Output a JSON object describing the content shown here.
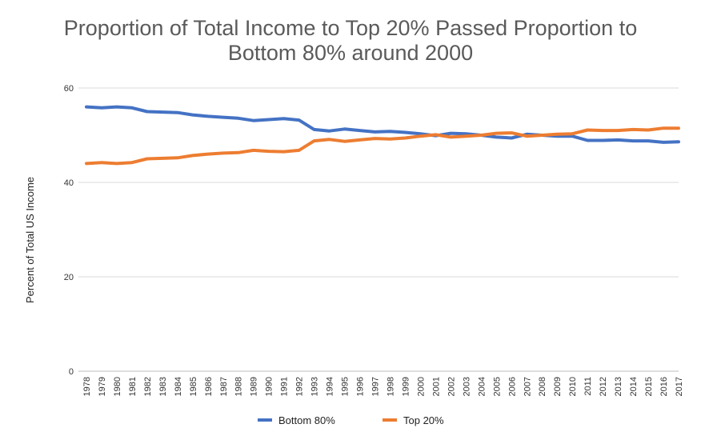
{
  "chart_data": {
    "type": "line",
    "title_lines": [
      "Proportion of Total Income to Top 20% Passed Proportion to",
      "Bottom 80% around 2000"
    ],
    "ylabel": "Percent of Total US Income",
    "xlabel": "",
    "ylim": [
      0,
      60
    ],
    "yticks": [
      0,
      20,
      40,
      60
    ],
    "grid": true,
    "legend_position": "bottom",
    "x": [
      "1978",
      "1979",
      "1980",
      "1981",
      "1982",
      "1983",
      "1984",
      "1985",
      "1986",
      "1987",
      "1988",
      "1989",
      "1990",
      "1991",
      "1992",
      "1993",
      "1994",
      "1995",
      "1996",
      "1997",
      "1998",
      "1999",
      "2000",
      "2001",
      "2002",
      "2003",
      "2004",
      "2005",
      "2006",
      "2007",
      "2008",
      "2009",
      "2010",
      "2011",
      "2012",
      "2013",
      "2014",
      "2015",
      "2016",
      "2017"
    ],
    "series": [
      {
        "name": "Bottom 80%",
        "color": "#4472C4",
        "values": [
          56.0,
          55.8,
          56.0,
          55.8,
          55.0,
          54.9,
          54.8,
          54.3,
          54.0,
          53.8,
          53.6,
          53.1,
          53.3,
          53.5,
          53.2,
          51.2,
          50.9,
          51.3,
          51.0,
          50.7,
          50.8,
          50.6,
          50.3,
          49.9,
          50.4,
          50.3,
          50.0,
          49.6,
          49.4,
          50.2,
          50.0,
          49.8,
          49.8,
          48.9,
          48.9,
          49.0,
          48.8,
          48.8,
          48.5,
          48.6
        ]
      },
      {
        "name": "Top 20%",
        "color": "#ED7D31",
        "values": [
          44.0,
          44.2,
          44.0,
          44.2,
          45.0,
          45.1,
          45.2,
          45.7,
          46.0,
          46.2,
          46.3,
          46.8,
          46.6,
          46.5,
          46.8,
          48.8,
          49.1,
          48.7,
          49.0,
          49.3,
          49.2,
          49.4,
          49.8,
          50.1,
          49.6,
          49.8,
          50.0,
          50.4,
          50.5,
          49.8,
          50.0,
          50.2,
          50.3,
          51.1,
          51.0,
          51.0,
          51.2,
          51.1,
          51.5,
          51.5
        ]
      }
    ]
  }
}
